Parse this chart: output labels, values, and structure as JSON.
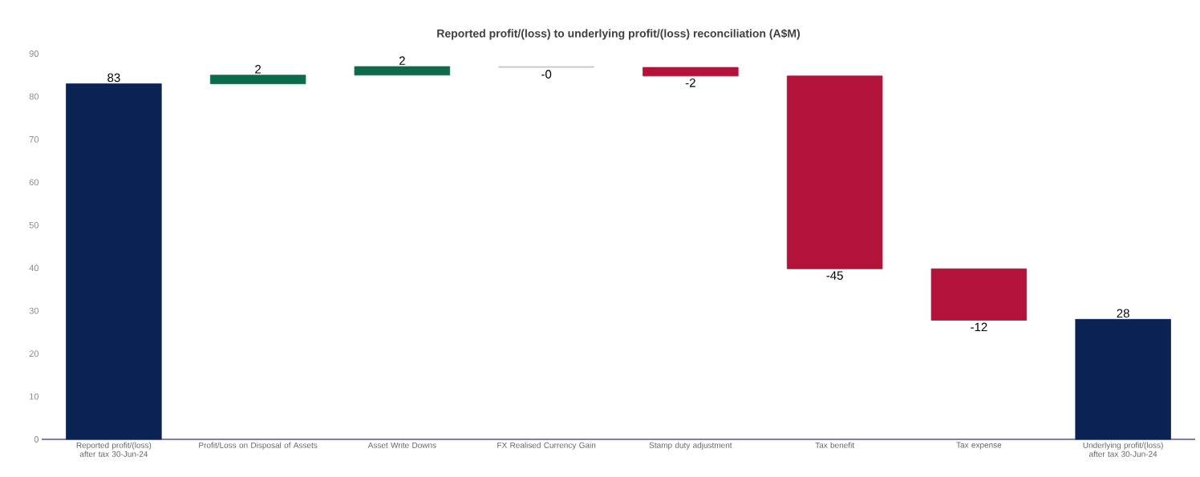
{
  "chart_data": {
    "type": "bar",
    "title": "Reported profit/(loss) to underlying profit/(loss) reconciliation (A$M)",
    "categories": [
      "Reported profit/(loss) after tax 30-Jun-24",
      "Profit/Loss on Disposal of Assets",
      "Asset Write Downs",
      "FX Realised Currency Gain",
      "Stamp duty adjustment",
      "Tax benefit",
      "Tax expense",
      "Underlying profit/(loss) after tax 30-Jun-24"
    ],
    "values": [
      83,
      2,
      2,
      -0.2,
      -2,
      -45,
      -12,
      28
    ],
    "base": [
      0,
      83,
      85,
      87,
      86.8,
      84.8,
      39.8,
      0
    ],
    "colors": [
      "#0a2352",
      "#0b6b4a",
      "#0b6b4a",
      "#c8c8c8",
      "#b3133a",
      "#b3133a",
      "#b3133a",
      "#0a2352"
    ],
    "value_labels": [
      "83",
      "2",
      "2",
      "-0",
      "-2",
      "-45",
      "-12",
      "28"
    ],
    "ylim": [
      0,
      90
    ],
    "yticks": [
      0,
      10,
      20,
      30,
      40,
      50,
      60,
      70,
      80,
      90
    ],
    "grid": false,
    "legend": false
  }
}
